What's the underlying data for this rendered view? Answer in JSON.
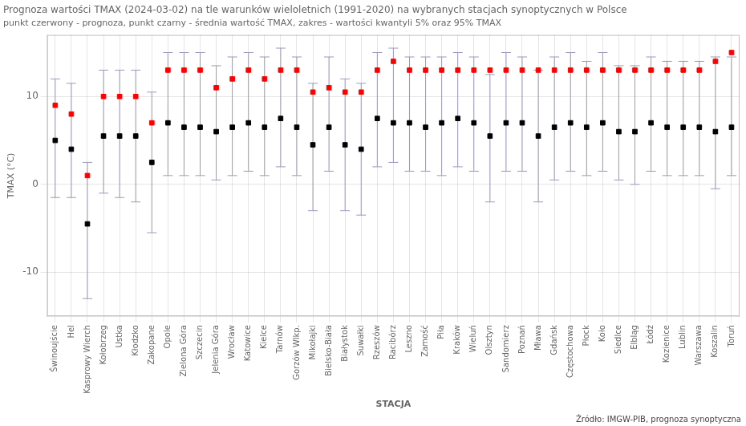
{
  "chart_data": {
    "type": "scatter",
    "title": "Prognoza wartości TMAX (2024-03-02) na tle warunków wieloletnich (1991-2020) na wybranych stacjach synoptycznych w Polsce",
    "subtitle": "punkt czerwony - prognoza, punkt czarny - średnia wartość TMAX, zakres - wartości kwantyli 5% oraz 95% TMAX",
    "xlabel": "STACJA",
    "ylabel": "TMAX (°C)",
    "source": "Źródło: IMGW-PIB, prognoza synoptyczna",
    "categories": [
      "Świnoujście",
      "Hel",
      "Kasprowy Wierch",
      "Kołobrzeg",
      "Ustka",
      "Kłodzko",
      "Zakopane",
      "Opole",
      "Zielona Góra",
      "Szczecin",
      "Jelenia Góra",
      "Wrocław",
      "Katowice",
      "Kielce",
      "Tarnów",
      "Gorzów Wlkp.",
      "Mikołajki",
      "Bielsko-Biała",
      "Białystok",
      "Suwałki",
      "Rzeszów",
      "Racibórz",
      "Leszno",
      "Zamość",
      "Piła",
      "Kraków",
      "Wieluń",
      "Olsztyn",
      "Sandomierz",
      "Poznań",
      "Mława",
      "Gdańsk",
      "Częstochowa",
      "Płock",
      "Koło",
      "Siedlce",
      "Elbląg",
      "Łódź",
      "Kozienice",
      "Lublin",
      "Warszawa",
      "Koszalin",
      "Toruń"
    ],
    "series": [
      {
        "color": "#ff0000",
        "marker": "square",
        "values": [
          9.0,
          8.0,
          1.0,
          10.0,
          10.0,
          10.0,
          7.0,
          13.0,
          13.0,
          13.0,
          11.0,
          12.0,
          13.0,
          12.0,
          13.0,
          13.0,
          10.5,
          11.0,
          10.5,
          10.5,
          13.0,
          14.0,
          13.0,
          13.0,
          13.0,
          13.0,
          13.0,
          13.0,
          13.0,
          13.0,
          13.0,
          13.0,
          13.0,
          13.0,
          13.0,
          13.0,
          13.0,
          13.0,
          13.0,
          13.0,
          13.0,
          14.0,
          15.0
        ]
      },
      {
        "color": "#000000",
        "marker": "square",
        "values": [
          5.0,
          4.0,
          -4.5,
          5.5,
          5.5,
          5.5,
          2.5,
          7.0,
          6.5,
          6.5,
          6.0,
          6.5,
          7.0,
          6.5,
          7.5,
          6.5,
          4.5,
          6.5,
          4.5,
          4.0,
          7.5,
          7.0,
          7.0,
          6.5,
          7.0,
          7.5,
          7.0,
          5.5,
          7.0,
          7.0,
          5.5,
          6.5,
          7.0,
          6.5,
          7.0,
          6.0,
          6.0,
          7.0,
          6.5,
          6.5,
          6.5,
          6.0,
          6.5
        ]
      }
    ],
    "error_bars": {
      "color": "#9999bb",
      "low": [
        -1.5,
        -1.5,
        -13.0,
        -1.0,
        -1.5,
        -2.0,
        -5.5,
        1.0,
        1.0,
        1.0,
        0.5,
        1.0,
        1.5,
        1.0,
        2.0,
        1.0,
        -3.0,
        1.5,
        -3.0,
        -3.5,
        2.0,
        2.5,
        1.5,
        1.5,
        1.0,
        2.0,
        1.5,
        -2.0,
        1.5,
        1.5,
        -2.0,
        0.5,
        1.5,
        1.0,
        1.5,
        0.5,
        0.0,
        1.5,
        1.0,
        1.0,
        1.0,
        -0.5,
        1.0
      ],
      "high": [
        12.0,
        11.5,
        2.5,
        13.0,
        13.0,
        13.0,
        10.5,
        15.0,
        15.0,
        15.0,
        13.5,
        14.5,
        15.0,
        14.5,
        15.5,
        14.5,
        11.5,
        14.5,
        12.0,
        11.5,
        15.0,
        15.5,
        14.5,
        14.5,
        14.5,
        15.0,
        14.5,
        12.5,
        15.0,
        14.5,
        13.0,
        14.5,
        15.0,
        14.0,
        15.0,
        13.5,
        13.5,
        14.5,
        14.0,
        14.0,
        14.0,
        14.5,
        14.5
      ]
    },
    "ylim": [
      -15,
      17
    ],
    "yticks": [
      -10,
      0,
      10
    ],
    "grid": true
  }
}
